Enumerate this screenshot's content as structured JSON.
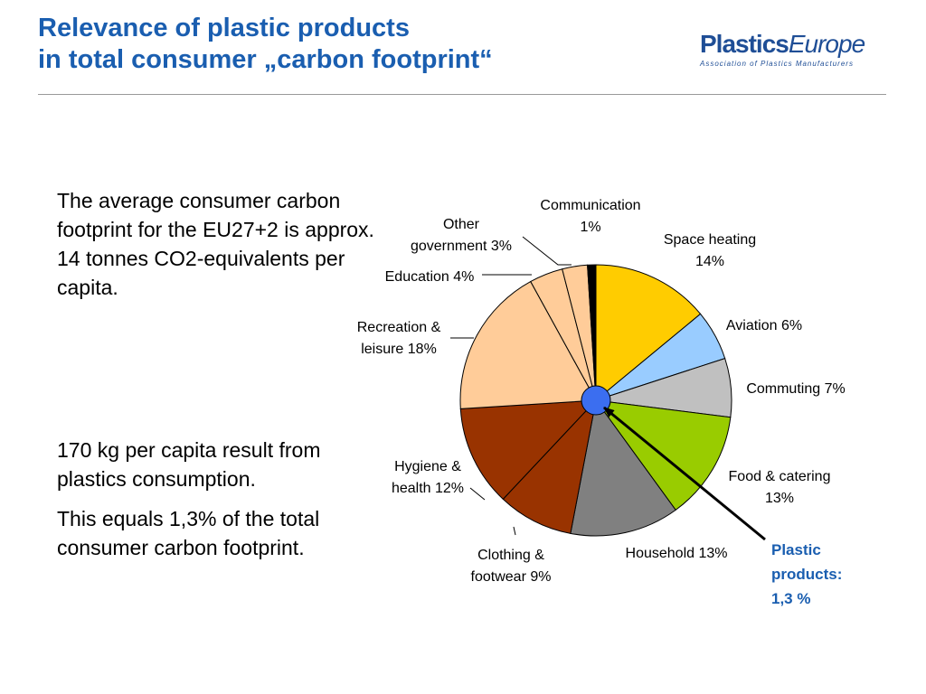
{
  "header": {
    "title_line1": "Relevance of plastic products",
    "title_line2": "in total consumer „carbon footprint“"
  },
  "logo": {
    "word_bold": "Plastics",
    "word_italic": "Europe",
    "tagline": "Association of Plastics Manufacturers"
  },
  "body": {
    "para1": "The average consumer carbon footprint for the EU27+2 is approx. 14 tonnes CO2-equivalents per capita.",
    "para2": "170 kg per capita result from plastics consumption.",
    "para3": "This equals 1,3% of the total consumer carbon footprint."
  },
  "colors": {
    "title": "#1a5eb0",
    "highlight_slice": "#3b6ef0",
    "highlight_text": "#1a5eb0"
  },
  "chart_data": {
    "type": "pie",
    "title": "",
    "start_angle_deg": 0,
    "direction": "clockwise",
    "slices": [
      {
        "label_lines": [
          "Space heating",
          "14%"
        ],
        "value": 14,
        "color": "#ffcc00"
      },
      {
        "label_lines": [
          "Aviation 6%"
        ],
        "value": 6,
        "color": "#99ccff"
      },
      {
        "label_lines": [
          "Commuting 7%"
        ],
        "value": 7,
        "color": "#c0c0c0"
      },
      {
        "label_lines": [
          "Food & catering",
          "13%"
        ],
        "value": 13,
        "color": "#99cc00"
      },
      {
        "label_lines": [
          "Household 13%"
        ],
        "value": 13,
        "color": "#808080"
      },
      {
        "label_lines": [
          "Clothing &",
          "footwear 9%"
        ],
        "value": 9,
        "color": "#993300"
      },
      {
        "label_lines": [
          "Hygiene &",
          "health 12%"
        ],
        "value": 12,
        "color": "#993300"
      },
      {
        "label_lines": [
          "Recreation &",
          "leisure 18%"
        ],
        "value": 18,
        "color": "#ffcc99"
      },
      {
        "label_lines": [
          "Education 4%"
        ],
        "value": 4,
        "color": "#ffcc99"
      },
      {
        "label_lines": [
          "Other",
          "government 3%"
        ],
        "value": 3,
        "color": "#ffcc99"
      },
      {
        "label_lines": [
          "Communication",
          "1%"
        ],
        "value": 1,
        "color": "#000000"
      }
    ],
    "highlight": {
      "label_lines": [
        "Plastic",
        "products:",
        "1,3 %"
      ],
      "value": 1.3
    }
  }
}
